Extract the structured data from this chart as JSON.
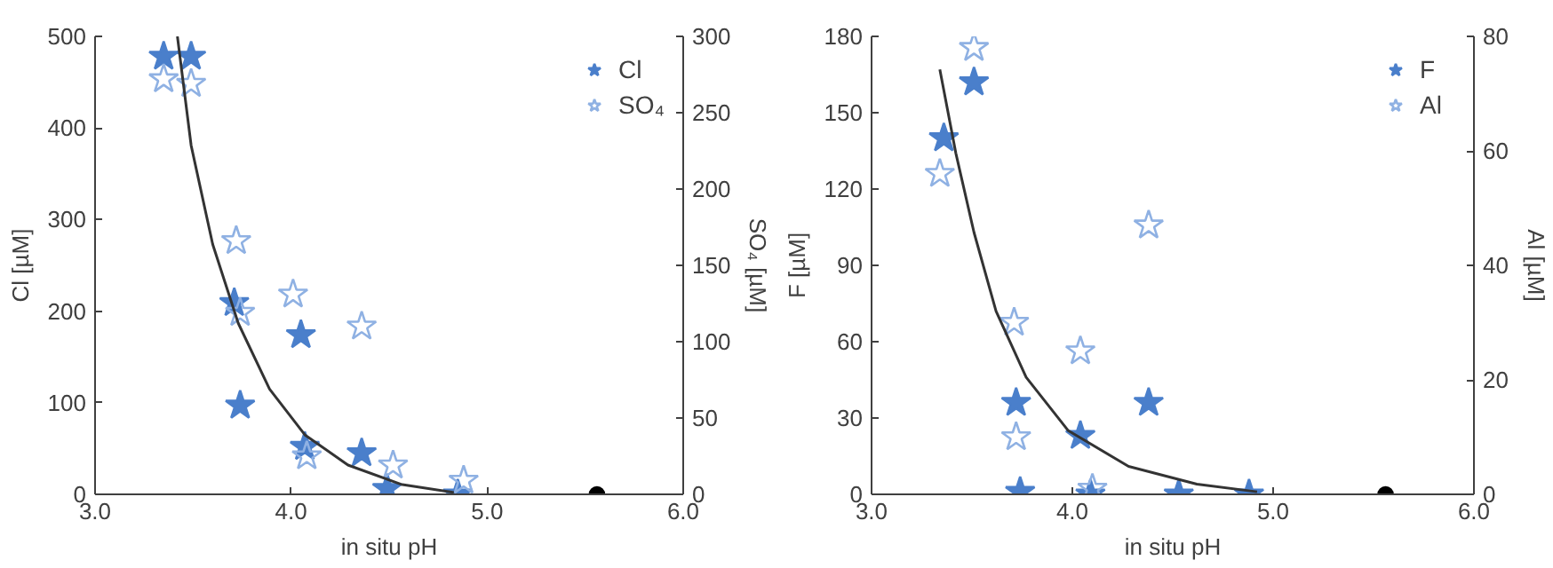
{
  "chart_data": [
    {
      "type": "scatter",
      "xlabel": "in situ pH",
      "ylabel": "Cl [µM]",
      "y2label": "SO₄ [µM]",
      "xlim": [
        3,
        6
      ],
      "xticks": [
        {
          "value": 3,
          "label": "3.0"
        },
        {
          "value": 4,
          "label": "4.0"
        },
        {
          "value": 5,
          "label": "5.0"
        },
        {
          "value": 6,
          "label": "6.0"
        }
      ],
      "ylim": [
        0,
        500
      ],
      "yticks": [
        0,
        100,
        200,
        300,
        400,
        500
      ],
      "y2lim": [
        0,
        300
      ],
      "y2ticks": [
        0,
        50,
        100,
        150,
        200,
        250,
        300
      ],
      "grid": false,
      "legend": "top right",
      "series": [
        {
          "name": "Cl",
          "color": "#4a7fcb",
          "marker": "star",
          "x": [
            3.35,
            3.49,
            3.71,
            4.05,
            3.74,
            4.07,
            4.36,
            4.49,
            4.85
          ],
          "values": [
            478,
            478,
            209,
            174,
            97,
            52,
            45,
            6,
            0
          ]
        },
        {
          "name": "SO₄",
          "color": "#8fb1e3",
          "marker": "star",
          "axis": "y2",
          "x": [
            3.35,
            3.49,
            3.72,
            4.01,
            4.36,
            3.74,
            4.08,
            4.52,
            4.88
          ],
          "values": [
            272,
            269,
            166,
            131,
            110,
            119,
            25,
            19,
            9
          ]
        },
        {
          "type": "line",
          "color": "#333333",
          "marker": "none",
          "x": [
            3.42,
            3.49,
            3.6,
            3.73,
            3.89,
            4.07,
            4.29,
            4.56,
            4.83
          ],
          "values": [
            500,
            381,
            273,
            187,
            115,
            65,
            32,
            11,
            2
          ]
        },
        {
          "color": "#000000",
          "marker": "circle",
          "x": [
            5.56
          ],
          "values": [
            0
          ]
        }
      ]
    },
    {
      "type": "scatter",
      "xlabel": "in situ pH",
      "ylabel": "F [µM]",
      "y2label": "Al [µM]",
      "xlim": [
        3,
        6
      ],
      "xticks": [
        {
          "value": 3,
          "label": "3.0"
        },
        {
          "value": 4,
          "label": "4.0"
        },
        {
          "value": 5,
          "label": "5.0"
        },
        {
          "value": 6,
          "label": "6.0"
        }
      ],
      "ylim": [
        0,
        180
      ],
      "yticks": [
        0,
        30,
        60,
        90,
        120,
        150,
        180
      ],
      "y2lim": [
        0,
        80
      ],
      "y2ticks": [
        0,
        20,
        40,
        60,
        80
      ],
      "grid": false,
      "legend": "top right",
      "series": [
        {
          "name": "F",
          "color": "#4a7fcb",
          "marker": "star",
          "x": [
            3.51,
            3.36,
            3.72,
            4.38,
            4.04,
            3.74,
            4.09,
            4.53,
            4.88
          ],
          "values": [
            162,
            140,
            36,
            36,
            23,
            1,
            0,
            0,
            0
          ]
        },
        {
          "name": "Al",
          "color": "#8fb1e3",
          "marker": "star",
          "axis": "y2",
          "x": [
            3.51,
            3.34,
            4.38,
            3.71,
            4.04,
            3.72,
            4.1
          ],
          "values": [
            78,
            56,
            47,
            30,
            25,
            10,
            1
          ]
        },
        {
          "type": "line",
          "color": "#333333",
          "marker": "none",
          "x": [
            3.34,
            3.42,
            3.51,
            3.62,
            3.77,
            3.98,
            4.28,
            4.62,
            4.92
          ],
          "values": [
            167,
            134,
            103,
            72,
            46,
            25,
            11,
            4,
            1
          ]
        },
        {
          "color": "#000000",
          "marker": "circle",
          "x": [
            5.56
          ],
          "values": [
            0
          ]
        }
      ]
    }
  ]
}
